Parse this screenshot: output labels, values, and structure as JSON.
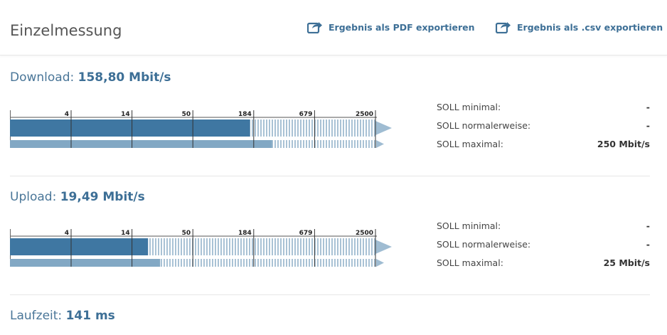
{
  "page": {
    "title": "Einzelmessung"
  },
  "exports": {
    "pdf_label": "Ergebnis als PDF exportieren",
    "csv_label": "Ergebnis als .csv exportieren",
    "icon": "share-export-icon"
  },
  "scale_ticks": [
    "4",
    "14",
    "50",
    "184",
    "679",
    "2500"
  ],
  "download": {
    "label": "Download:",
    "value": "158,80 Mbit/s",
    "measured_mbits": 158.8,
    "reference_mbits": 250,
    "soll": [
      {
        "label": "SOLL minimal:",
        "value": "-"
      },
      {
        "label": "SOLL normalerweise:",
        "value": "-"
      },
      {
        "label": "SOLL maximal:",
        "value": "250 Mbit/s"
      }
    ]
  },
  "upload": {
    "label": "Upload:",
    "value": "19,49 Mbit/s",
    "measured_mbits": 19.49,
    "reference_mbits": 25,
    "soll": [
      {
        "label": "SOLL minimal:",
        "value": "-"
      },
      {
        "label": "SOLL normalerweise:",
        "value": "-"
      },
      {
        "label": "SOLL maximal:",
        "value": "25 Mbit/s"
      }
    ]
  },
  "laufzeit": {
    "label": "Laufzeit:",
    "value": "141 ms"
  },
  "colors": {
    "accent": "#3d6f96",
    "bar_dark": "#3f77a2",
    "bar_light": "#82a8c4",
    "stripes": "#a9c2d5",
    "arrow": "#9fbcd2"
  }
}
